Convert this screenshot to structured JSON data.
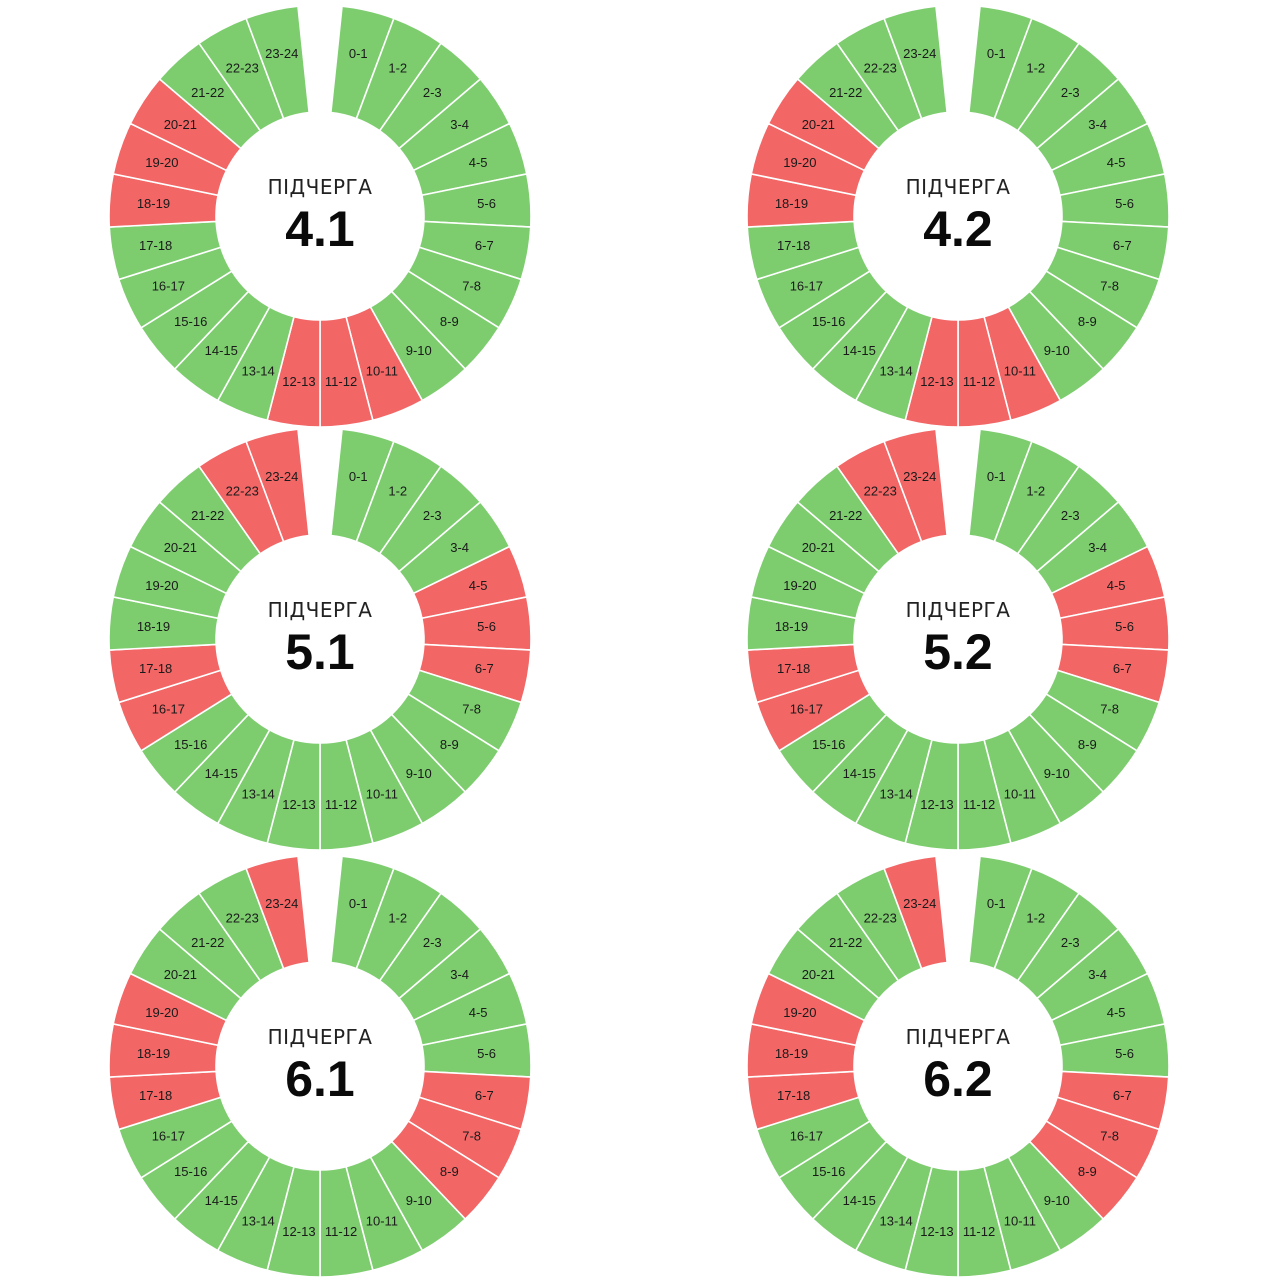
{
  "chart_data": [
    {
      "type": "pie",
      "caption": "ПІДЧЕРГА",
      "number": "4.1",
      "categories": [
        "0-1",
        "1-2",
        "2-3",
        "3-4",
        "4-5",
        "5-6",
        "6-7",
        "7-8",
        "8-9",
        "9-10",
        "10-11",
        "11-12",
        "12-13",
        "13-14",
        "14-15",
        "15-16",
        "16-17",
        "17-18",
        "18-19",
        "19-20",
        "20-21",
        "21-22",
        "22-23",
        "23-24"
      ],
      "status": [
        "on",
        "on",
        "on",
        "on",
        "on",
        "on",
        "on",
        "on",
        "on",
        "on",
        "off",
        "off",
        "off",
        "on",
        "on",
        "on",
        "on",
        "on",
        "off",
        "off",
        "off",
        "on",
        "on",
        "on"
      ]
    },
    {
      "type": "pie",
      "caption": "ПІДЧЕРГА",
      "number": "4.2",
      "categories": [
        "0-1",
        "1-2",
        "2-3",
        "3-4",
        "4-5",
        "5-6",
        "6-7",
        "7-8",
        "8-9",
        "9-10",
        "10-11",
        "11-12",
        "12-13",
        "13-14",
        "14-15",
        "15-16",
        "16-17",
        "17-18",
        "18-19",
        "19-20",
        "20-21",
        "21-22",
        "22-23",
        "23-24"
      ],
      "status": [
        "on",
        "on",
        "on",
        "on",
        "on",
        "on",
        "on",
        "on",
        "on",
        "on",
        "off",
        "off",
        "off",
        "on",
        "on",
        "on",
        "on",
        "on",
        "off",
        "off",
        "off",
        "on",
        "on",
        "on"
      ]
    },
    {
      "type": "pie",
      "caption": "ПІДЧЕРГА",
      "number": "5.1",
      "categories": [
        "0-1",
        "1-2",
        "2-3",
        "3-4",
        "4-5",
        "5-6",
        "6-7",
        "7-8",
        "8-9",
        "9-10",
        "10-11",
        "11-12",
        "12-13",
        "13-14",
        "14-15",
        "15-16",
        "16-17",
        "17-18",
        "18-19",
        "19-20",
        "20-21",
        "21-22",
        "22-23",
        "23-24"
      ],
      "status": [
        "on",
        "on",
        "on",
        "on",
        "off",
        "off",
        "off",
        "on",
        "on",
        "on",
        "on",
        "on",
        "on",
        "on",
        "on",
        "on",
        "off",
        "off",
        "on",
        "on",
        "on",
        "on",
        "off",
        "off"
      ]
    },
    {
      "type": "pie",
      "caption": "ПІДЧЕРГА",
      "number": "5.2",
      "categories": [
        "0-1",
        "1-2",
        "2-3",
        "3-4",
        "4-5",
        "5-6",
        "6-7",
        "7-8",
        "8-9",
        "9-10",
        "10-11",
        "11-12",
        "12-13",
        "13-14",
        "14-15",
        "15-16",
        "16-17",
        "17-18",
        "18-19",
        "19-20",
        "20-21",
        "21-22",
        "22-23",
        "23-24"
      ],
      "status": [
        "on",
        "on",
        "on",
        "on",
        "off",
        "off",
        "off",
        "on",
        "on",
        "on",
        "on",
        "on",
        "on",
        "on",
        "on",
        "on",
        "off",
        "off",
        "on",
        "on",
        "on",
        "on",
        "off",
        "off"
      ]
    },
    {
      "type": "pie",
      "caption": "ПІДЧЕРГА",
      "number": "6.1",
      "categories": [
        "0-1",
        "1-2",
        "2-3",
        "3-4",
        "4-5",
        "5-6",
        "6-7",
        "7-8",
        "8-9",
        "9-10",
        "10-11",
        "11-12",
        "12-13",
        "13-14",
        "14-15",
        "15-16",
        "16-17",
        "17-18",
        "18-19",
        "19-20",
        "20-21",
        "21-22",
        "22-23",
        "23-24"
      ],
      "status": [
        "on",
        "on",
        "on",
        "on",
        "on",
        "on",
        "off",
        "off",
        "off",
        "on",
        "on",
        "on",
        "on",
        "on",
        "on",
        "on",
        "on",
        "off",
        "off",
        "off",
        "on",
        "on",
        "on",
        "off"
      ]
    },
    {
      "type": "pie",
      "caption": "ПІДЧЕРГА",
      "number": "6.2",
      "categories": [
        "0-1",
        "1-2",
        "2-3",
        "3-4",
        "4-5",
        "5-6",
        "6-7",
        "7-8",
        "8-9",
        "9-10",
        "10-11",
        "11-12",
        "12-13",
        "13-14",
        "14-15",
        "15-16",
        "16-17",
        "17-18",
        "18-19",
        "19-20",
        "20-21",
        "21-22",
        "22-23",
        "23-24"
      ],
      "status": [
        "on",
        "on",
        "on",
        "on",
        "on",
        "on",
        "off",
        "off",
        "off",
        "on",
        "on",
        "on",
        "on",
        "on",
        "on",
        "on",
        "on",
        "off",
        "off",
        "off",
        "on",
        "on",
        "on",
        "off"
      ]
    }
  ],
  "colors": {
    "on": "#7dcd6f",
    "off": "#f26666",
    "separator": "#ffffff",
    "background": "#ffffff"
  }
}
